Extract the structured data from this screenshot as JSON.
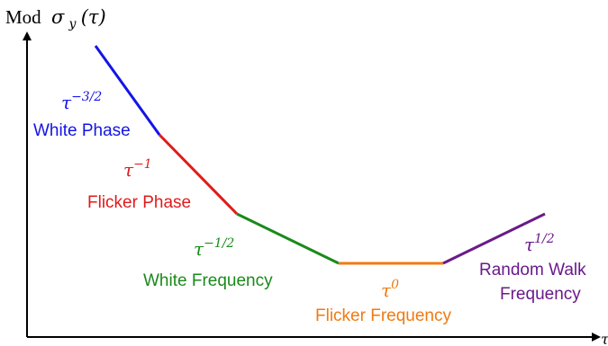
{
  "axes": {
    "y_prefix": "Mod",
    "y_symbol": "σ",
    "y_subscript": "y",
    "y_arg": "(τ)",
    "x_symbol": "τ"
  },
  "segments": [
    {
      "id": "white-phase",
      "exponent_text": "τ",
      "exponent_sup": "−3/2",
      "name": "White Phase",
      "color": "#1414e6"
    },
    {
      "id": "flicker-phase",
      "exponent_text": "τ",
      "exponent_sup": "−1",
      "name": "Flicker Phase",
      "color": "#e01b1b"
    },
    {
      "id": "white-frequency",
      "exponent_text": "τ",
      "exponent_sup": "−1/2",
      "name": "White Frequency",
      "color": "#1a8a1a"
    },
    {
      "id": "flicker-frequency",
      "exponent_text": "τ",
      "exponent_sup": "0",
      "name": "Flicker Frequency",
      "color": "#f07a12"
    },
    {
      "id": "random-walk",
      "exponent_text": "τ",
      "exponent_sup": "1/2",
      "name_line1": "Random Walk",
      "name_line2": "Frequency",
      "color": "#6a1a8a"
    }
  ],
  "colors": {
    "axis": "#000000"
  }
}
